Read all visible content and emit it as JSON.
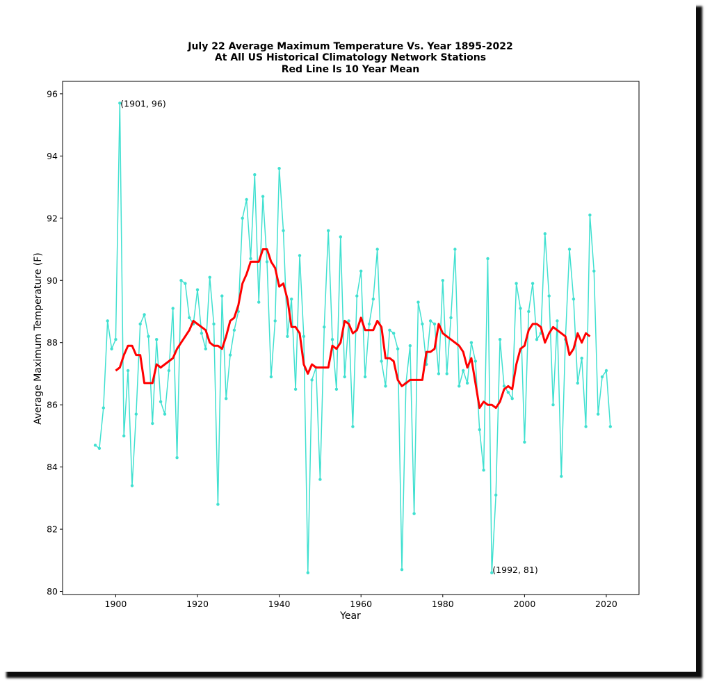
{
  "chart_data": {
    "type": "line",
    "title": [
      "July 22 Average Maximum Temperature Vs. Year 1895-2022",
      "At All US Historical Climatology Network Stations",
      "Red Line Is 10 Year Mean"
    ],
    "xlabel": "Year",
    "ylabel": "Average Maximum Temperature (F)",
    "xlim": [
      1887,
      2028
    ],
    "ylim": [
      79.9,
      96.4
    ],
    "xticks": [
      1900,
      1920,
      1940,
      1960,
      1980,
      2000,
      2020
    ],
    "yticks": [
      80,
      82,
      84,
      86,
      88,
      90,
      92,
      94,
      96
    ],
    "grid": false,
    "colors": {
      "annual": "#40e0d0",
      "mean": "#ff0000"
    },
    "annotations": [
      {
        "text": "(1901, 96)",
        "x": 1901,
        "y": 95.7
      },
      {
        "text": "(1992, 81)",
        "x": 1992,
        "y": 80.7
      }
    ],
    "series": [
      {
        "role": "annual",
        "x": [
          1895,
          1896,
          1897,
          1898,
          1899,
          1900,
          1901,
          1902,
          1903,
          1904,
          1905,
          1906,
          1907,
          1908,
          1909,
          1910,
          1911,
          1912,
          1913,
          1914,
          1915,
          1916,
          1917,
          1918,
          1919,
          1920,
          1921,
          1922,
          1923,
          1924,
          1925,
          1926,
          1927,
          1928,
          1929,
          1930,
          1931,
          1932,
          1933,
          1934,
          1935,
          1936,
          1937,
          1938,
          1939,
          1940,
          1941,
          1942,
          1943,
          1944,
          1945,
          1946,
          1947,
          1948,
          1949,
          1950,
          1951,
          1952,
          1953,
          1954,
          1955,
          1956,
          1957,
          1958,
          1959,
          1960,
          1961,
          1962,
          1963,
          1964,
          1965,
          1966,
          1967,
          1968,
          1969,
          1970,
          1971,
          1972,
          1973,
          1974,
          1975,
          1976,
          1977,
          1978,
          1979,
          1980,
          1981,
          1982,
          1983,
          1984,
          1985,
          1986,
          1987,
          1988,
          1989,
          1990,
          1991,
          1992,
          1993,
          1994,
          1995,
          1996,
          1997,
          1998,
          1999,
          2000,
          2001,
          2002,
          2003,
          2004,
          2005,
          2006,
          2007,
          2008,
          2009,
          2010,
          2011,
          2012,
          2013,
          2014,
          2015,
          2016,
          2017,
          2018,
          2019,
          2020,
          2021
        ],
        "values": [
          84.7,
          84.6,
          85.9,
          88.7,
          87.8,
          88.1,
          95.7,
          85.0,
          87.1,
          83.4,
          85.7,
          88.6,
          88.9,
          88.2,
          85.4,
          88.1,
          86.1,
          85.7,
          87.1,
          89.1,
          84.3,
          90.0,
          89.9,
          88.8,
          88.6,
          89.7,
          88.3,
          87.8,
          90.1,
          88.6,
          82.8,
          89.5,
          86.2,
          87.6,
          88.4,
          89.0,
          92.0,
          92.6,
          90.7,
          93.4,
          89.3,
          92.7,
          90.6,
          86.9,
          88.7,
          93.6,
          91.6,
          88.2,
          89.4,
          86.5,
          90.8,
          88.2,
          80.6,
          86.8,
          87.2,
          83.6,
          88.5,
          91.6,
          88.1,
          86.5,
          91.4,
          86.9,
          88.7,
          85.3,
          89.5,
          90.3,
          86.9,
          88.6,
          89.4,
          91.0,
          87.4,
          86.6,
          88.4,
          88.3,
          87.8,
          80.7,
          86.7,
          87.9,
          82.5,
          89.3,
          88.6,
          87.3,
          88.7,
          88.6,
          87.0,
          90.0,
          87.0,
          88.8,
          91.0,
          86.6,
          87.1,
          86.7,
          88.0,
          87.4,
          85.2,
          83.9,
          90.7,
          80.6,
          83.1,
          88.1,
          86.6,
          86.4,
          86.2,
          89.9,
          89.1,
          84.8,
          89.0,
          89.9,
          88.1,
          88.3,
          91.5,
          89.5,
          86.0,
          88.7,
          83.7,
          88.1,
          91.0,
          89.4,
          86.7,
          87.5,
          85.3,
          92.1,
          90.3,
          85.7,
          86.9,
          87.1,
          85.3
        ]
      },
      {
        "role": "mean",
        "x": [
          1900,
          1901,
          1902,
          1903,
          1904,
          1905,
          1906,
          1907,
          1908,
          1909,
          1910,
          1911,
          1912,
          1913,
          1914,
          1915,
          1916,
          1917,
          1918,
          1919,
          1920,
          1921,
          1922,
          1923,
          1924,
          1925,
          1926,
          1927,
          1928,
          1929,
          1930,
          1931,
          1932,
          1933,
          1934,
          1935,
          1936,
          1937,
          1938,
          1939,
          1940,
          1941,
          1942,
          1943,
          1944,
          1945,
          1946,
          1947,
          1948,
          1949,
          1950,
          1951,
          1952,
          1953,
          1954,
          1955,
          1956,
          1957,
          1958,
          1959,
          1960,
          1961,
          1962,
          1963,
          1964,
          1965,
          1966,
          1967,
          1968,
          1969,
          1970,
          1971,
          1972,
          1973,
          1974,
          1975,
          1976,
          1977,
          1978,
          1979,
          1980,
          1981,
          1982,
          1983,
          1984,
          1985,
          1986,
          1987,
          1988,
          1989,
          1990,
          1991,
          1992,
          1993,
          1994,
          1995,
          1996,
          1997,
          1998,
          1999,
          2000,
          2001,
          2002,
          2003,
          2004,
          2005,
          2006,
          2007,
          2008,
          2009,
          2010,
          2011,
          2012,
          2013,
          2014,
          2015,
          2016
        ],
        "values": [
          87.1,
          87.2,
          87.6,
          87.9,
          87.9,
          87.6,
          87.6,
          86.7,
          86.7,
          86.7,
          87.3,
          87.2,
          87.3,
          87.4,
          87.5,
          87.8,
          88.0,
          88.2,
          88.4,
          88.7,
          88.6,
          88.5,
          88.4,
          88.0,
          87.9,
          87.9,
          87.8,
          88.2,
          88.7,
          88.8,
          89.2,
          89.9,
          90.2,
          90.6,
          90.6,
          90.6,
          91.0,
          91.0,
          90.6,
          90.4,
          89.8,
          89.9,
          89.4,
          88.5,
          88.5,
          88.3,
          87.3,
          87.0,
          87.3,
          87.2,
          87.2,
          87.2,
          87.2,
          87.9,
          87.8,
          88.0,
          88.7,
          88.6,
          88.3,
          88.4,
          88.8,
          88.4,
          88.4,
          88.4,
          88.7,
          88.5,
          87.5,
          87.5,
          87.4,
          86.8,
          86.6,
          86.7,
          86.8,
          86.8,
          86.8,
          86.8,
          87.7,
          87.7,
          87.8,
          88.6,
          88.3,
          88.2,
          88.1,
          88.0,
          87.9,
          87.7,
          87.2,
          87.5,
          86.7,
          85.9,
          86.1,
          86.0,
          86.0,
          85.9,
          86.1,
          86.5,
          86.6,
          86.5,
          87.3,
          87.8,
          87.9,
          88.4,
          88.6,
          88.6,
          88.5,
          88.0,
          88.3,
          88.5,
          88.4,
          88.3,
          88.2,
          87.6,
          87.8,
          88.3,
          88.0,
          88.3,
          88.2
        ]
      }
    ]
  }
}
